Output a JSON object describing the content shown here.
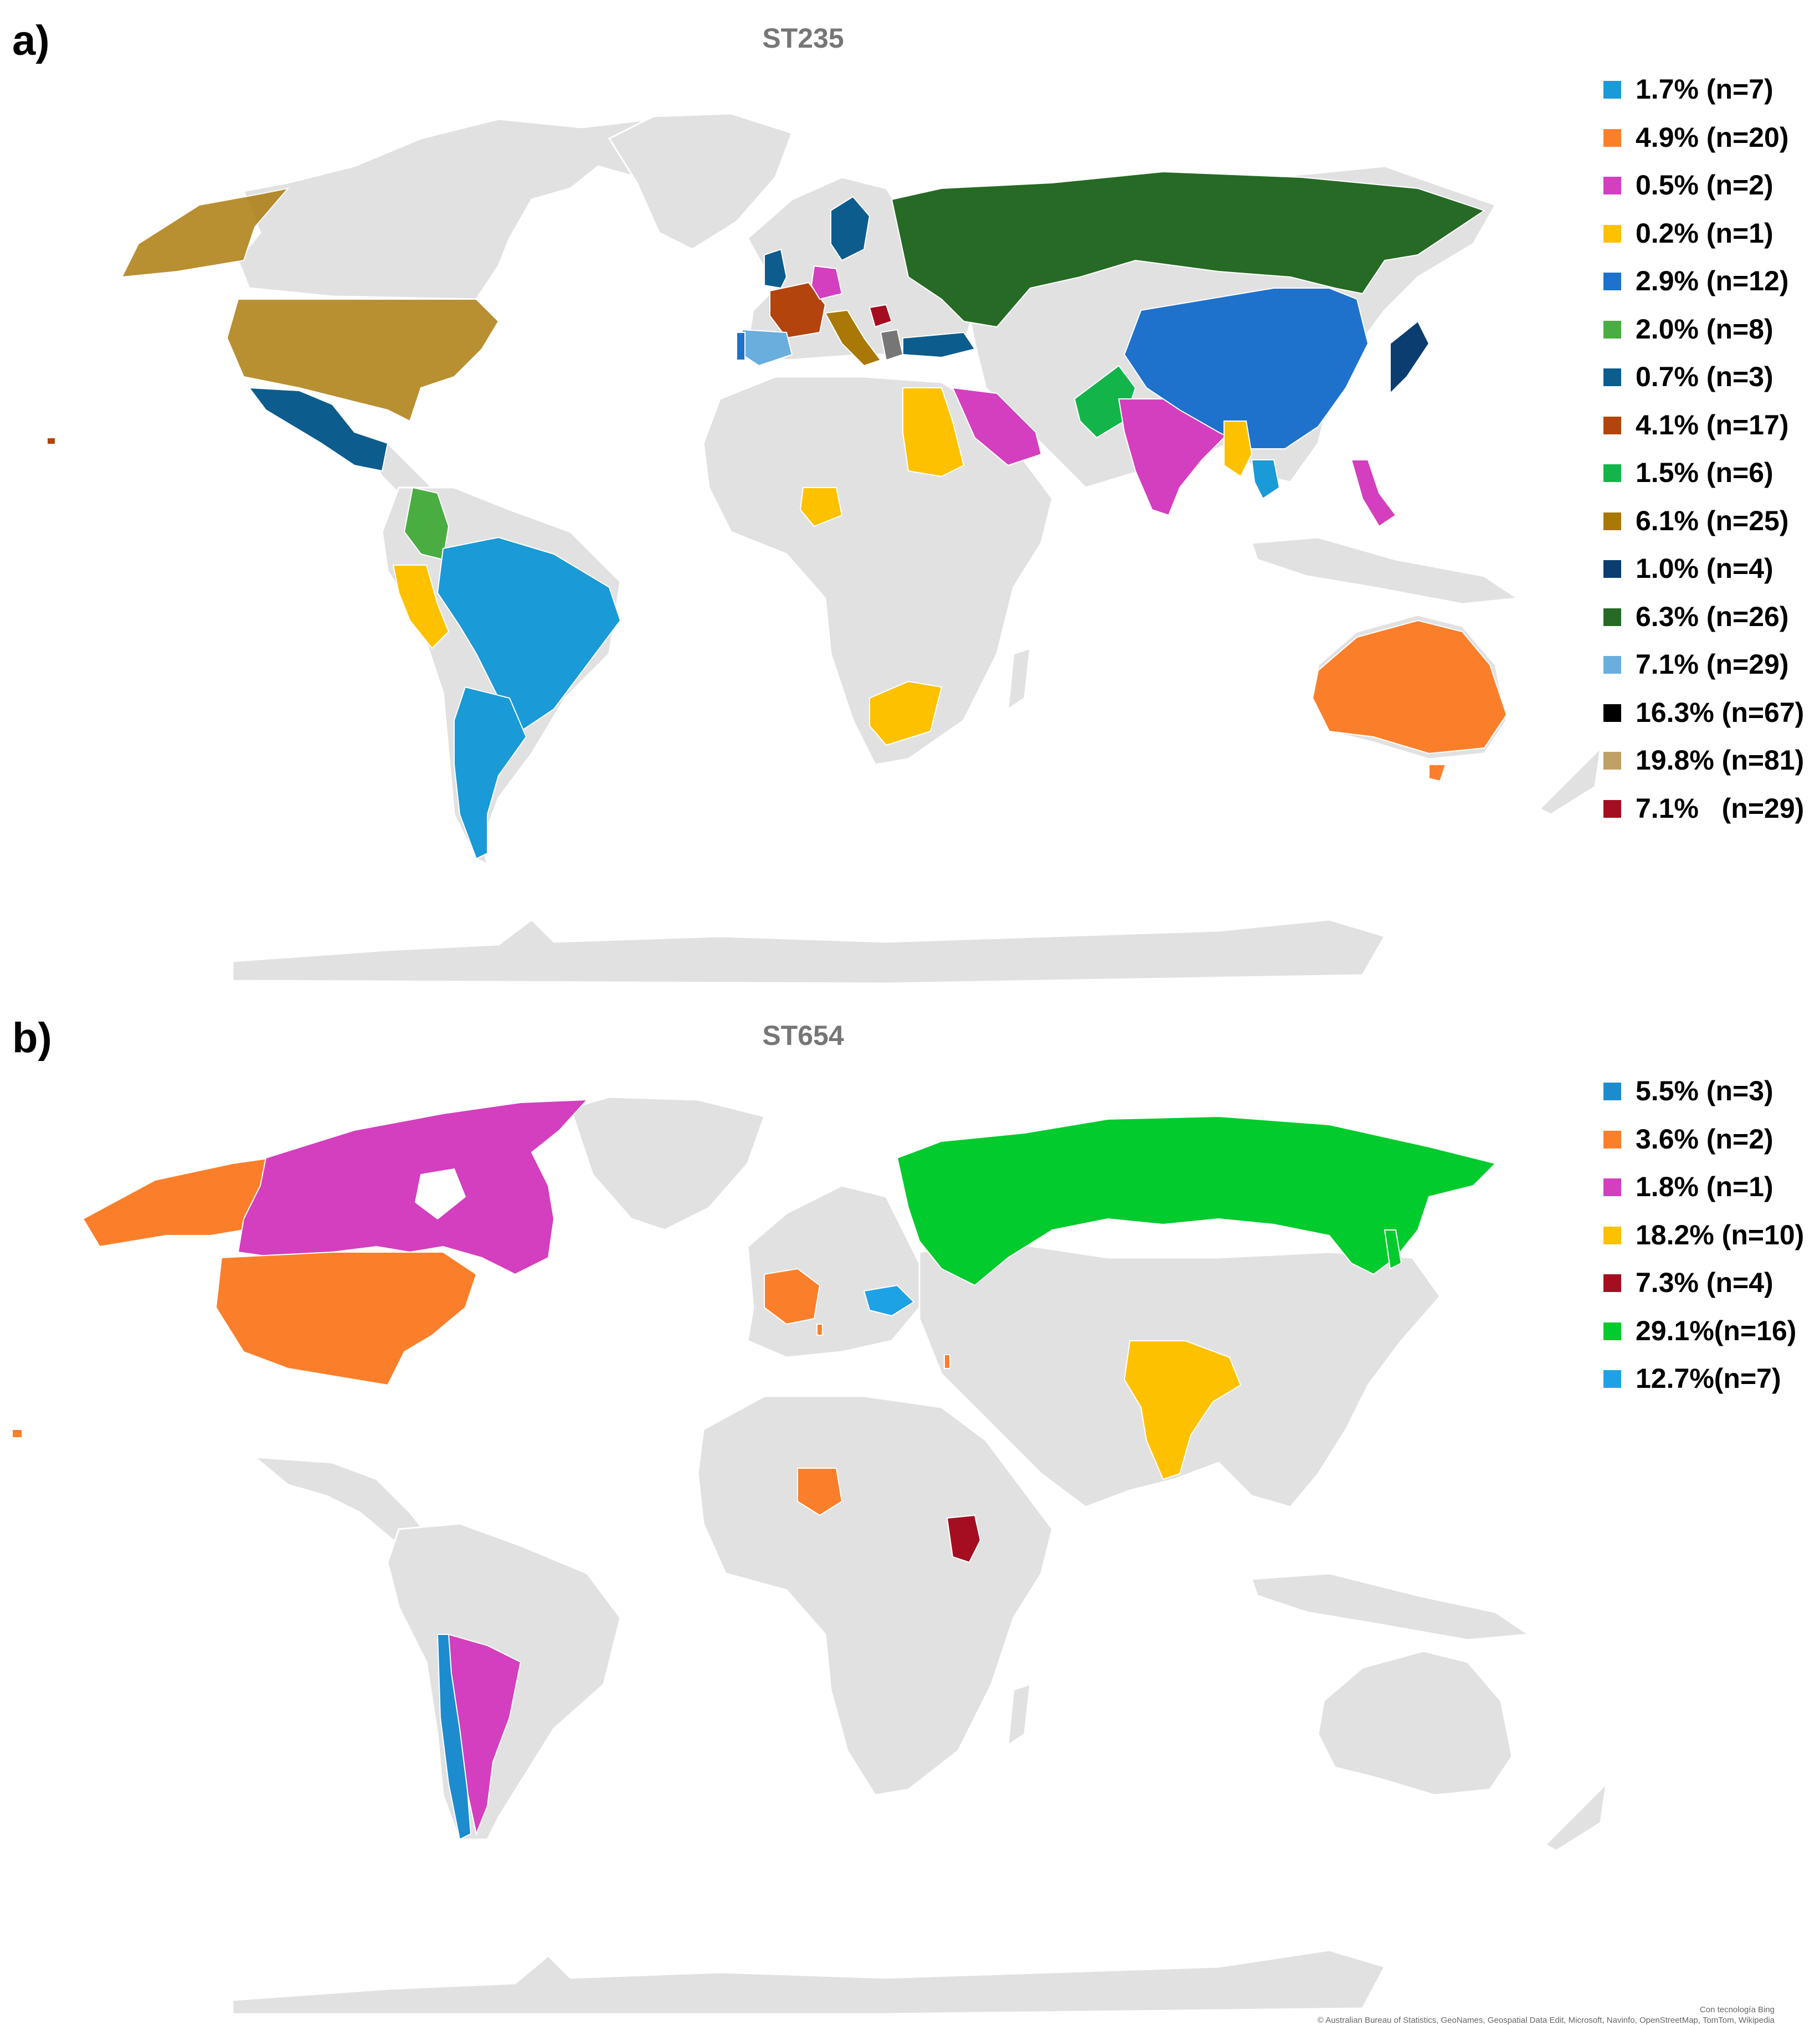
{
  "panels": {
    "a": {
      "letter": "a)",
      "title": "ST235",
      "legend": [
        {
          "label": "1.7% (n=7)",
          "color": "#1a9ad6"
        },
        {
          "label": "4.9% (n=20)",
          "color": "#fb7f2b"
        },
        {
          "label": "0.5% (n=2)",
          "color": "#d33fbe"
        },
        {
          "label": "0.2% (n=1)",
          "color": "#fdc100"
        },
        {
          "label": "2.9% (n=12)",
          "color": "#1e72cb"
        },
        {
          "label": "2.0% (n=8)",
          "color": "#4aad42"
        },
        {
          "label": "0.7% (n=3)",
          "color": "#0d5c8e"
        },
        {
          "label": "4.1% (n=17)",
          "color": "#b3440e"
        },
        {
          "label": "1.5% (n=6)",
          "color": "#13b54b"
        },
        {
          "label": "6.1% (n=25)",
          "color": "#a97806"
        },
        {
          "label": "1.0% (n=4)",
          "color": "#0b3d70"
        },
        {
          "label": "6.3% (n=26)",
          "color": "#266a25"
        },
        {
          "label": "7.1% (n=29)",
          "color": "#6aaede"
        },
        {
          "label": "16.3% (n=67)",
          "color": "#000000"
        },
        {
          "label": "19.8% (n=81)",
          "color": "#bfa066"
        },
        {
          "label": "7.1%   (n=29)",
          "color": "#a50e21"
        }
      ]
    },
    "b": {
      "letter": "b)",
      "title": "ST654",
      "legend": [
        {
          "label": "5.5% (n=3)",
          "color": "#1c8ccf"
        },
        {
          "label": "3.6% (n=2)",
          "color": "#fb7f2b"
        },
        {
          "label": "1.8% (n=1)",
          "color": "#d33fbe"
        },
        {
          "label": "18.2% (n=10)",
          "color": "#fdc100"
        },
        {
          "label": "7.3% (n=4)",
          "color": "#a50e21"
        },
        {
          "label": "29.1%(n=16)",
          "color": "#02cb2d"
        },
        {
          "label": "12.7%(n=7)",
          "color": "#1ea2e6"
        }
      ]
    }
  },
  "map_colors": {
    "land": "#e1e1e1",
    "border": "#ffffff"
  },
  "attribution": {
    "line1": "Con tecnología Bing",
    "line2": "© Australian Bureau of Statistics, GeoNames, Geospatial Data Edit, Microsoft, Navinfo, OpenStreetMap, TomTom, Wikipedia"
  }
}
